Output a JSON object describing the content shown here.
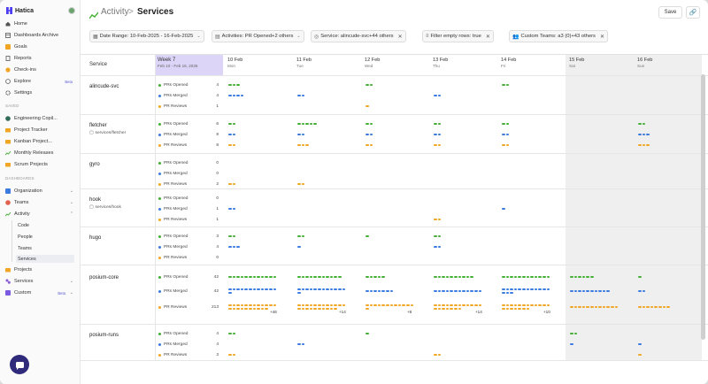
{
  "sidebar": {
    "logo": "Hatica",
    "items": [
      {
        "label": "Home"
      },
      {
        "label": "Dashboards Archive"
      },
      {
        "label": "Goals"
      },
      {
        "label": "Reports"
      },
      {
        "label": "Check-ins"
      },
      {
        "label": "Explore",
        "badge": "Beta"
      },
      {
        "label": "Settings"
      }
    ],
    "saved_header": "SAVED",
    "saved": [
      {
        "label": "Engineering Copil..."
      },
      {
        "label": "Project Tracker"
      },
      {
        "label": "Kanban Project..."
      },
      {
        "label": "Monthly Releases"
      },
      {
        "label": "Scrum Projects"
      }
    ],
    "dashboards_header": "DASHBOARDS",
    "dashboards": [
      {
        "label": "Organization"
      },
      {
        "label": "Teams"
      },
      {
        "label": "Activity"
      }
    ],
    "activity_sub": [
      "Code",
      "People",
      "Teams",
      "Services"
    ],
    "after": [
      {
        "label": "Projects"
      },
      {
        "label": "Services"
      },
      {
        "label": "Custom",
        "badge": "Beta"
      }
    ]
  },
  "header": {
    "crumb1": "Activity",
    "sep": ">",
    "crumb2": "Services",
    "save": "Save"
  },
  "filters": [
    {
      "label": "Date Range: 10-Feb-2025 - 16-Feb-2025"
    },
    {
      "label": "Activities: PR Opened+2 others"
    },
    {
      "label": "Service: alincude-svc+44 others"
    },
    {
      "label": "Filter empty rows: true"
    },
    {
      "label": "Custom Teams: a3 (0)+43 others"
    }
  ],
  "table": {
    "service_header": "Service",
    "week": {
      "title": "Week 7",
      "range": "Feb 10 - Feb 16, 2025"
    },
    "days": [
      {
        "date": "10 Feb",
        "weekday": "Mon"
      },
      {
        "date": "11 Feb",
        "weekday": "Tue"
      },
      {
        "date": "12 Feb",
        "weekday": "Wed"
      },
      {
        "date": "13 Feb",
        "weekday": "Thu"
      },
      {
        "date": "14 Feb",
        "weekday": "Fri"
      },
      {
        "date": "15 Feb",
        "weekday": "Sat"
      },
      {
        "date": "16 Feb",
        "weekday": "Sun"
      }
    ],
    "metric_labels": [
      "PRs Opened",
      "PRs Merged",
      "PR Reviews"
    ],
    "metric_colors": [
      "#44b035",
      "#3b7be0",
      "#f0a624"
    ],
    "rows": [
      {
        "name": "alincude-svc",
        "path": "",
        "values": [
          "4",
          "4",
          "1"
        ]
      },
      {
        "name": "fletcher",
        "path": "services/fletcher",
        "values": [
          "6",
          "8",
          "8"
        ]
      },
      {
        "name": "gyro",
        "path": "",
        "values": [
          "0",
          "0",
          "2"
        ]
      },
      {
        "name": "hook",
        "path": "services/hook",
        "values": [
          "0",
          "1",
          "1"
        ]
      },
      {
        "name": "hugo",
        "path": "",
        "values": [
          "3",
          "4",
          "0"
        ]
      },
      {
        "name": "posium-core",
        "path": "",
        "values": [
          "42",
          "42",
          "213"
        ]
      },
      {
        "name": "posium-runs",
        "path": "",
        "values": [
          "4",
          "4",
          "3"
        ]
      }
    ],
    "overflow": [
      "+46",
      "+14",
      "+8",
      "+14",
      "+10"
    ]
  }
}
